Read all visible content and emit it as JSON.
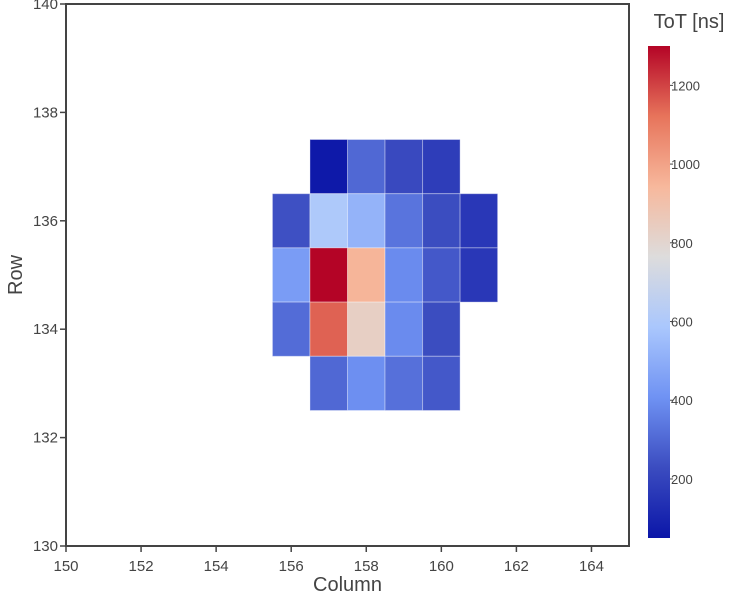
{
  "chart_data": {
    "type": "heatmap",
    "xlabel": "Column",
    "ylabel": "Row",
    "xlim": [
      150,
      165
    ],
    "ylim": [
      130,
      140
    ],
    "x_ticks": [
      "150",
      "152",
      "154",
      "156",
      "158",
      "160",
      "162",
      "164"
    ],
    "y_ticks": [
      "130",
      "132",
      "134",
      "136",
      "138",
      "140"
    ],
    "colorbar": {
      "title": "ToT [ns]",
      "range": [
        50,
        1300
      ],
      "ticks": [
        "200",
        "400",
        "600",
        "800",
        "1000",
        "1200"
      ],
      "colorscale": [
        "#0b16a8",
        "#3b4cc0",
        "#6f92f3",
        "#aac7fd",
        "#dddcdc",
        "#f7b89c",
        "#e7745b",
        "#b40426"
      ]
    },
    "cells": [
      {
        "column": 157,
        "row": 137,
        "tot": 60
      },
      {
        "column": 158,
        "row": 137,
        "tot": 300
      },
      {
        "column": 159,
        "row": 137,
        "tot": 220
      },
      {
        "column": 160,
        "row": 137,
        "tot": 180
      },
      {
        "column": 156,
        "row": 136,
        "tot": 240
      },
      {
        "column": 157,
        "row": 136,
        "tot": 600
      },
      {
        "column": 158,
        "row": 136,
        "tot": 520
      },
      {
        "column": 159,
        "row": 136,
        "tot": 330
      },
      {
        "column": 160,
        "row": 136,
        "tot": 230
      },
      {
        "column": 161,
        "row": 136,
        "tot": 160
      },
      {
        "column": 156,
        "row": 135,
        "tot": 440
      },
      {
        "column": 157,
        "row": 135,
        "tot": 1300
      },
      {
        "column": 158,
        "row": 135,
        "tot": 950
      },
      {
        "column": 159,
        "row": 135,
        "tot": 390
      },
      {
        "column": 160,
        "row": 135,
        "tot": 260
      },
      {
        "column": 161,
        "row": 135,
        "tot": 160
      },
      {
        "column": 156,
        "row": 134,
        "tot": 310
      },
      {
        "column": 157,
        "row": 134,
        "tot": 1150
      },
      {
        "column": 158,
        "row": 134,
        "tot": 830
      },
      {
        "column": 159,
        "row": 134,
        "tot": 390
      },
      {
        "column": 160,
        "row": 134,
        "tot": 230
      },
      {
        "column": 157,
        "row": 133,
        "tot": 300
      },
      {
        "column": 158,
        "row": 133,
        "tot": 400
      },
      {
        "column": 159,
        "row": 133,
        "tot": 320
      },
      {
        "column": 160,
        "row": 133,
        "tot": 260
      }
    ]
  }
}
